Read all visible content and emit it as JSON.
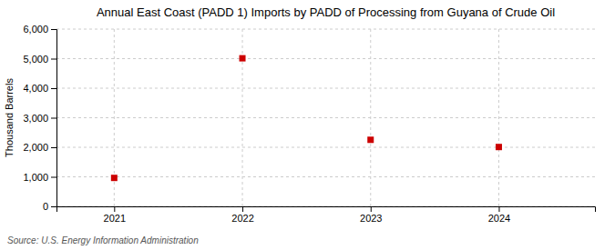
{
  "chart_data": {
    "type": "scatter",
    "title": "Annual East Coast (PADD 1) Imports by PADD of Processing from Guyana of Crude Oil",
    "ylabel": "Thousand Barrels",
    "source": "Source: U.S. Energy Information Administration",
    "x": [
      2021,
      2022,
      2023,
      2024
    ],
    "values": [
      963,
      5012,
      2253,
      2009
    ],
    "color": "#cc0000",
    "marker": "square",
    "xlim": [
      2020.55,
      2024.75
    ],
    "xticks": [
      2021,
      2022,
      2023,
      2024
    ],
    "ylim": [
      0,
      6000
    ],
    "yticks": [
      0,
      {
        "value": 1000,
        "label": "1,000"
      },
      {
        "value": 2000,
        "label": "2,000"
      },
      {
        "value": 3000,
        "label": "3,000"
      },
      {
        "value": 4000,
        "label": "4,000"
      },
      {
        "value": 5000,
        "label": "5,000"
      },
      {
        "value": 6000,
        "label": "6,000"
      }
    ],
    "grid": true
  }
}
